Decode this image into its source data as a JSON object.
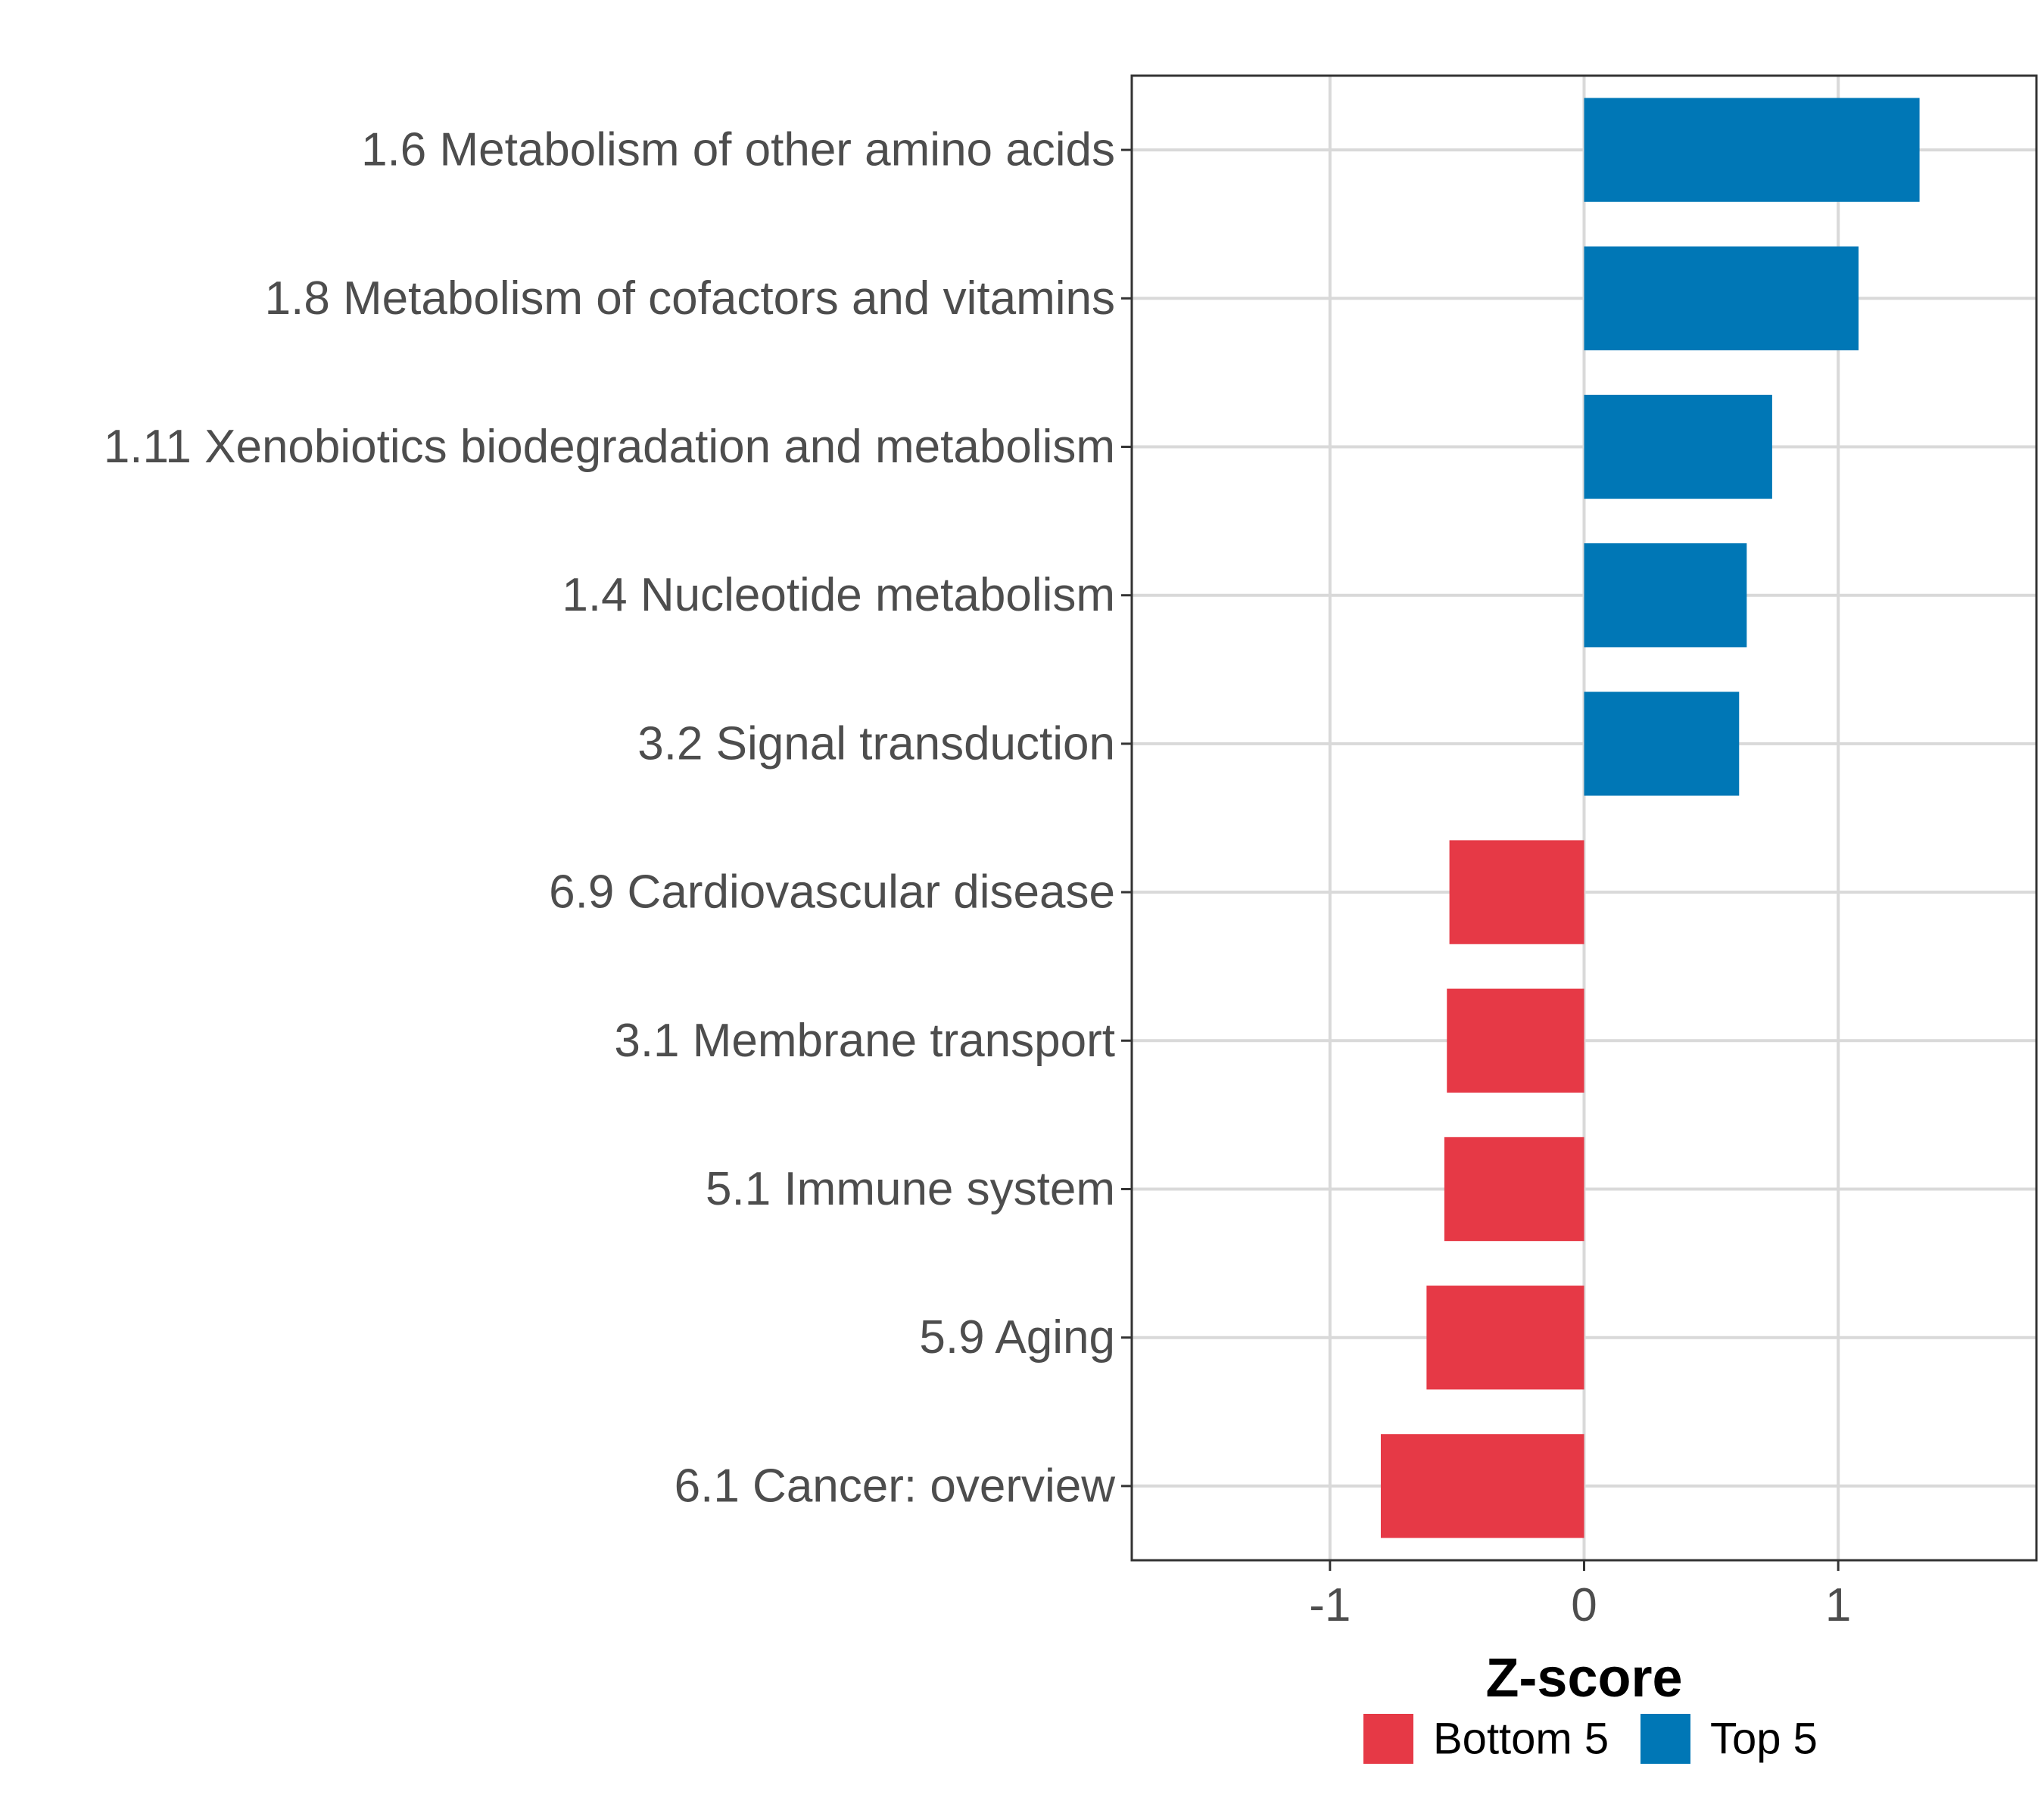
{
  "chart_data": {
    "type": "bar",
    "orientation": "horizontal",
    "categories": [
      "1.6 Metabolism of other amino acids",
      "1.8 Metabolism of cofactors and vitamins",
      "1.11 Xenobiotics biodegradation and metabolism",
      "1.4 Nucleotide metabolism",
      "3.2 Signal transduction",
      "6.9 Cardiovascular disease",
      "3.1 Membrane transport",
      "5.1 Immune system",
      "5.9 Aging",
      "6.1 Cancer: overview"
    ],
    "values": [
      1.32,
      1.08,
      0.74,
      0.64,
      0.61,
      -0.53,
      -0.54,
      -0.55,
      -0.62,
      -0.8
    ],
    "groups": [
      "Top 5",
      "Top 5",
      "Top 5",
      "Top 5",
      "Top 5",
      "Bottom 5",
      "Bottom 5",
      "Bottom 5",
      "Bottom 5",
      "Bottom 5"
    ],
    "xlabel": "Z-score",
    "ylabel": "",
    "xlim": [
      -1.78,
      1.78
    ],
    "xticks": [
      -1,
      0,
      1
    ],
    "xtick_labels": [
      "-1",
      "0",
      "1"
    ],
    "grid": true,
    "legend": {
      "position": "bottom",
      "entries": [
        {
          "label": "Bottom 5",
          "color": "#e63946"
        },
        {
          "label": "Top 5",
          "color": "#0077b6"
        }
      ]
    },
    "colors": {
      "Bottom 5": "#e63946",
      "Top 5": "#0077b6"
    }
  }
}
